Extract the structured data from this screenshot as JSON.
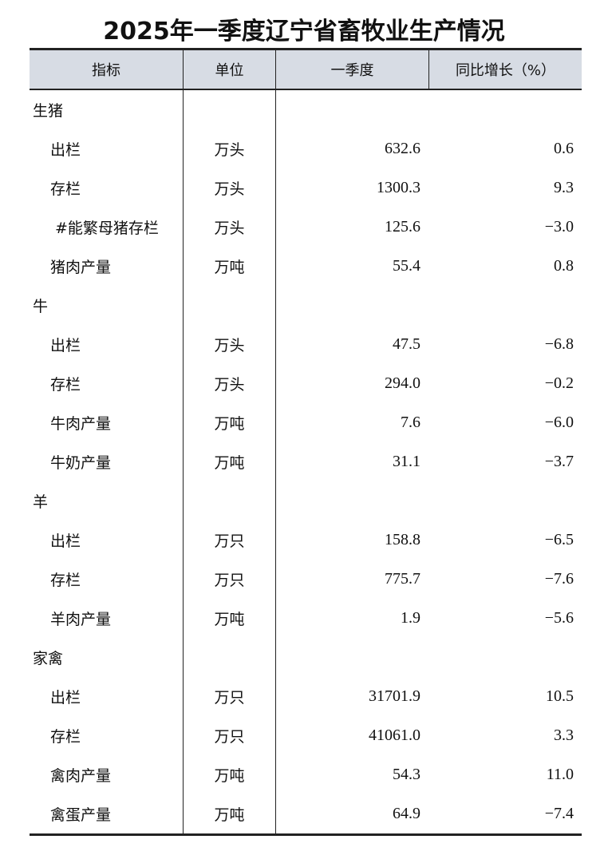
{
  "title": "2025年一季度辽宁省畜牧业生产情况",
  "headers": [
    "指标",
    "单位",
    "一季度",
    "同比增长（%）"
  ],
  "rows": [
    {
      "label": "生猪",
      "unit": "",
      "value": "",
      "change": "",
      "level": 0
    },
    {
      "label": "出栏",
      "unit": "万头",
      "value": "632.6",
      "change": "0.6",
      "level": 1
    },
    {
      "label": "存栏",
      "unit": "万头",
      "value": "1300.3",
      "change": "9.3",
      "level": 1
    },
    {
      "label": "#能繁母猪存栏",
      "unit": "万头",
      "value": "125.6",
      "change": "−3.0",
      "level": 2
    },
    {
      "label": "猪肉产量",
      "unit": "万吨",
      "value": "55.4",
      "change": "0.8",
      "level": 1
    },
    {
      "label": "牛",
      "unit": "",
      "value": "",
      "change": "",
      "level": 0
    },
    {
      "label": "出栏",
      "unit": "万头",
      "value": "47.5",
      "change": "−6.8",
      "level": 1
    },
    {
      "label": "存栏",
      "unit": "万头",
      "value": "294.0",
      "change": "−0.2",
      "level": 1
    },
    {
      "label": "牛肉产量",
      "unit": "万吨",
      "value": "7.6",
      "change": "−6.0",
      "level": 1
    },
    {
      "label": "牛奶产量",
      "unit": "万吨",
      "value": "31.1",
      "change": "−3.7",
      "level": 1
    },
    {
      "label": "羊",
      "unit": "",
      "value": "",
      "change": "",
      "level": 0
    },
    {
      "label": "出栏",
      "unit": "万只",
      "value": "158.8",
      "change": "−6.5",
      "level": 1
    },
    {
      "label": "存栏",
      "unit": "万只",
      "value": "775.7",
      "change": "−7.6",
      "level": 1
    },
    {
      "label": "羊肉产量",
      "unit": "万吨",
      "value": "1.9",
      "change": "−5.6",
      "level": 1
    },
    {
      "label": "家禽",
      "unit": "",
      "value": "",
      "change": "",
      "level": 0
    },
    {
      "label": "出栏",
      "unit": "万只",
      "value": "31701.9",
      "change": "10.5",
      "level": 1
    },
    {
      "label": "存栏",
      "unit": "万只",
      "value": "41061.0",
      "change": "3.3",
      "level": 1
    },
    {
      "label": "禽肉产量",
      "unit": "万吨",
      "value": "54.3",
      "change": "11.0",
      "level": 1
    },
    {
      "label": "禽蛋产量",
      "unit": "万吨",
      "value": "64.9",
      "change": "−7.4",
      "level": 1
    }
  ]
}
